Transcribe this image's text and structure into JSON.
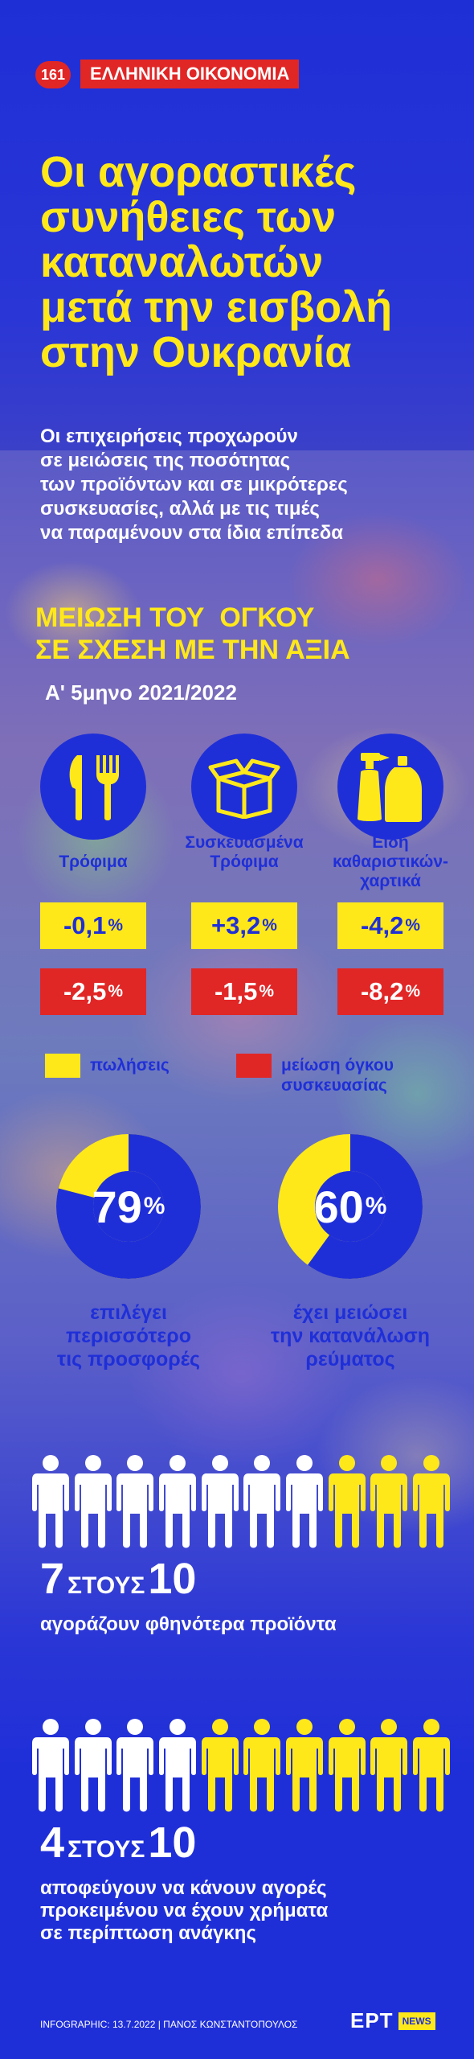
{
  "header": {
    "issue_number": "161",
    "section_label": "ΕΛΛΗΝΙΚΗ ΟΙΚΟΝΟΜΙΑ"
  },
  "title_lines": [
    "Οι αγοραστικές",
    "συνήθειες των",
    "καταναλωτών",
    "μετά την εισβολή",
    "στην Ουκρανία"
  ],
  "subtitle_lines": [
    "Οι επιχειρήσεις προχωρούν",
    "σε μειώσεις της ποσότητας",
    "των προϊόντων και σε μικρότερες",
    "συσκευασίες, αλλά με τις τιμές",
    "να παραμένουν στα ίδια επίπεδα"
  ],
  "volume_section": {
    "title_lines": [
      "ΜΕΙΩΣΗ ΤΟΥ  ΟΓΚΟΥ",
      "ΣΕ ΣΧΕΣΗ ΜΕ ΤΗΝ ΑΞΙΑ"
    ],
    "period": "Α' 5μηνο 2021/2022",
    "categories": [
      {
        "icon": "fork-knife-icon",
        "label_lines": [
          "Τρόφιμα"
        ],
        "sales": "-0,1",
        "volume": "-2,5"
      },
      {
        "icon": "box-icon",
        "label_lines": [
          "Συσκευασμένα",
          "Τρόφιμα"
        ],
        "sales": "+3,2",
        "volume": "-1,5"
      },
      {
        "icon": "cleaning-products-icon",
        "label_lines": [
          "Είδη",
          "καθαριστικών-",
          "χαρτικά"
        ],
        "sales": "-4,2",
        "volume": "-8,2"
      }
    ],
    "percent_sign": "%",
    "legend": {
      "sales_label": "πωλήσεις",
      "volume_label_lines": [
        "μείωση όγκου",
        "συσκευασίας"
      ],
      "sales_color": "#ffe81a",
      "volume_color": "#e12626"
    }
  },
  "donuts": [
    {
      "value": "79",
      "fraction": 0.79,
      "label_lines": [
        "επιλέγει",
        "περισσότερο",
        "τις προσφορές"
      ]
    },
    {
      "value": "60",
      "fraction": 0.6,
      "label_lines": [
        "έχει μειώσει",
        "την κατανάλωση",
        "ρεύματος"
      ]
    }
  ],
  "people_stats": [
    {
      "highlighted": 7,
      "total": 10,
      "value": "7",
      "of_label": "ΣΤΟΥΣ",
      "total_label": "10",
      "caption_lines": [
        "αγοράζουν φθηνότερα προϊόντα"
      ]
    },
    {
      "highlighted": 4,
      "total": 10,
      "value": "4",
      "of_label": "ΣΤΟΥΣ",
      "total_label": "10",
      "caption_lines": [
        "αποφεύγουν να κάνουν αγορές",
        "προκειμένου να έχουν χρήματα",
        "σε περίπτωση ανάγκης"
      ]
    }
  ],
  "footer": {
    "credit": "INFOGRAPHIC: 13.7.2022 | ΠΑΝΟΣ ΚΩΝΣΤΑΝΤΟΠΟΥΛΟΣ",
    "logo_main": "ΕΡΤ",
    "logo_sub": "NEWS"
  },
  "colors": {
    "brand_blue": "#1f2fd8",
    "yellow": "#ffe81a",
    "red": "#e12626",
    "white": "#ffffff"
  }
}
